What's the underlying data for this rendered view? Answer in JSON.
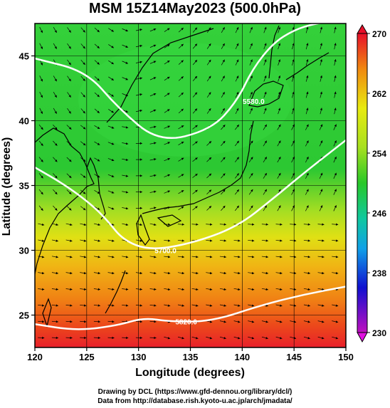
{
  "title": "MSM 15Z14May2023 (500.0hPa)",
  "axes": {
    "xlabel": "Longitude (degrees)",
    "ylabel": "Latitude  (degrees)",
    "xticks": [
      "120",
      "125",
      "130",
      "135",
      "140",
      "145",
      "150"
    ],
    "yticks": [
      "45",
      "40",
      "35",
      "30",
      "25"
    ]
  },
  "colorbar": {
    "ticks": [
      "270",
      "262",
      "254",
      "246",
      "238",
      "230"
    ]
  },
  "contour_labels": [
    "5580.0",
    "5700.0",
    "5820.0"
  ],
  "footer": {
    "line1": "Drawing by DCL (https://www.gfd-dennou.org/library/dcl/)",
    "line2": "Data from http://database.rish.kyoto-u.ac.jp/arch/jmadata/"
  },
  "chart_data": {
    "type": "heatmap",
    "title": "MSM 15Z14May2023 (500.0hPa)",
    "xlabel": "Longitude (degrees)",
    "ylabel": "Latitude  (degrees)",
    "xlim": [
      120,
      150
    ],
    "ylim": [
      22.5,
      47.5
    ],
    "colorbar_range": [
      230,
      270
    ],
    "colors": {
      "high": "#e8102a",
      "orange": "#f08a10",
      "yellow": "#e8ea10",
      "green": "#28c828",
      "cyan": "#10c8c8",
      "blue": "#1010d0",
      "low": "#c010c0"
    },
    "contour_lines": [
      {
        "label": "5580.0",
        "lon": [
          120,
          125,
          128,
          132,
          137,
          139.5,
          141,
          143,
          145,
          147,
          150
        ],
        "lat": [
          44.8,
          43.8,
          41.0,
          38.3,
          39.3,
          41.5,
          44.0,
          46.0,
          47.0,
          47.5,
          47.8
        ]
      },
      {
        "label": "5700.0",
        "lon": [
          120,
          123,
          125.5,
          127,
          128.5,
          131,
          135,
          139.5,
          143,
          146,
          150
        ],
        "lat": [
          36.4,
          35.0,
          33.5,
          32.3,
          30.8,
          30.0,
          30.5,
          31.8,
          34.0,
          36.0,
          38.5
        ]
      },
      {
        "label": "5820.0",
        "lon": [
          120,
          124,
          128,
          130.5,
          133,
          137,
          142,
          146,
          150
        ],
        "lat": [
          24.3,
          23.8,
          24.2,
          24.8,
          24.5,
          24.5,
          25.8,
          26.6,
          27.2
        ]
      }
    ]
  }
}
